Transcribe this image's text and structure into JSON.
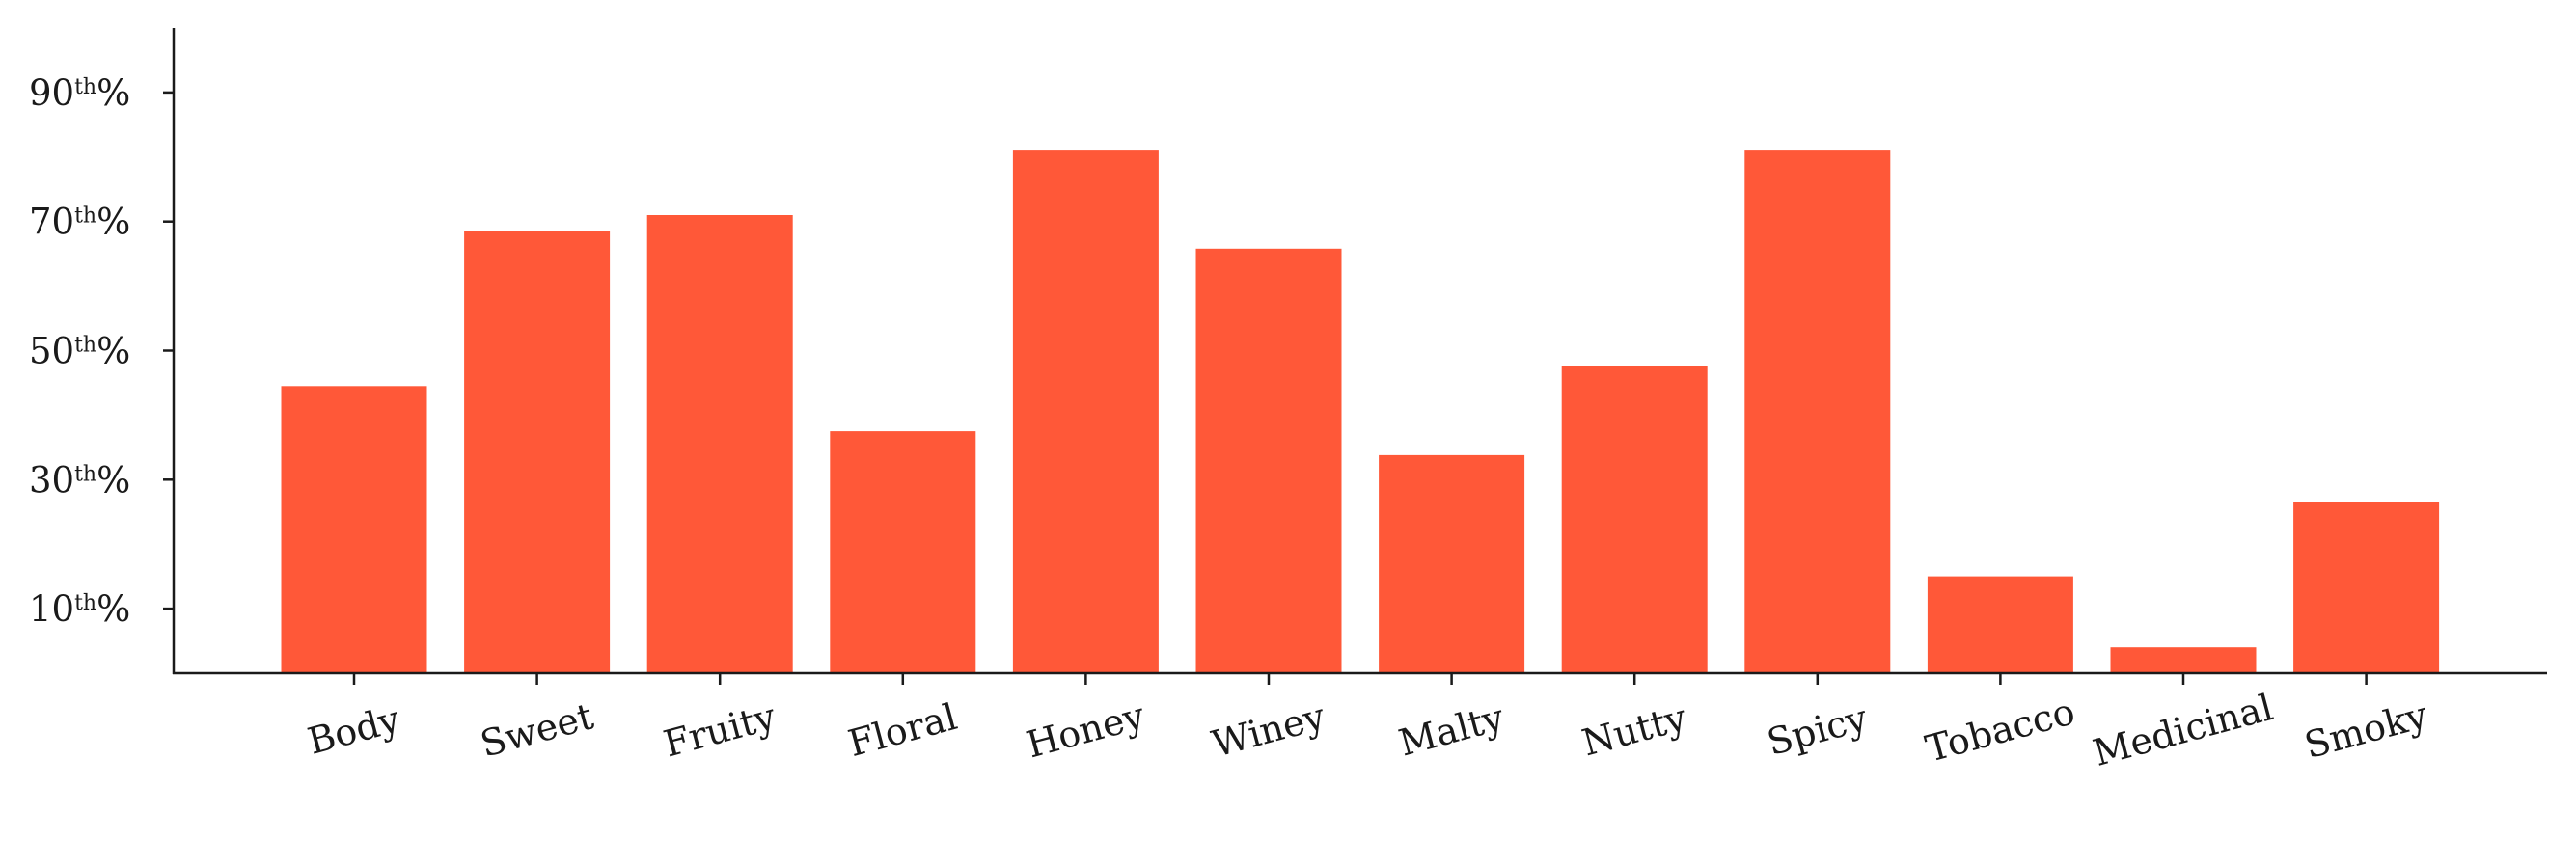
{
  "chart_data": {
    "type": "bar",
    "title": "",
    "xlabel": "",
    "ylabel": "",
    "categories": [
      "Body",
      "Sweet",
      "Fruity",
      "Floral",
      "Honey",
      "Winey",
      "Malty",
      "Nutty",
      "Spicy",
      "Tobacco",
      "Medicinal",
      "Smoky"
    ],
    "values": [
      44.5,
      68.5,
      71,
      37.5,
      81,
      65.8,
      33.8,
      47.6,
      81,
      15,
      4,
      26.5
    ],
    "ylim": [
      0,
      100
    ],
    "yticks": [
      {
        "value": 10,
        "number": "10",
        "suffix": "th",
        "percent": "%"
      },
      {
        "value": 30,
        "number": "30",
        "suffix": "th",
        "percent": "%"
      },
      {
        "value": 50,
        "number": "50",
        "suffix": "th",
        "percent": "%"
      },
      {
        "value": 70,
        "number": "70",
        "suffix": "th",
        "percent": "%"
      },
      {
        "value": 90,
        "number": "90",
        "suffix": "th",
        "percent": "%"
      }
    ],
    "grid": false,
    "legend": "none",
    "bar_color": "#ff5838",
    "axis_color": "#1a1a1a"
  }
}
